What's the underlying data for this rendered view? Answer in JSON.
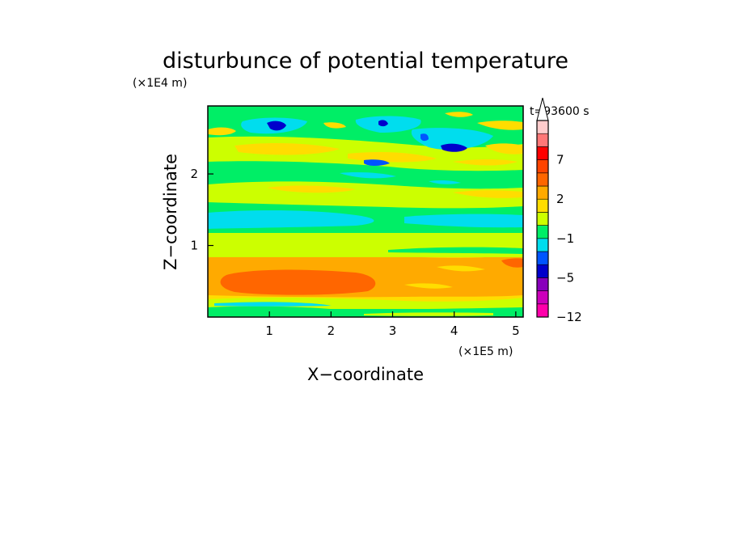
{
  "chart_data": {
    "type": "heatmap",
    "title": "disturbunce of potential temperature",
    "time_label": "t=93600 s",
    "xlabel": "X−coordinate",
    "ylabel": "Z−coordinate",
    "x_unit": "(×1E5 m)",
    "y_unit": "(×1E4 m)",
    "xlim": [
      0,
      5.12
    ],
    "ylim": [
      0,
      2.95
    ],
    "x_ticks": [
      {
        "value": 1,
        "label": "1"
      },
      {
        "value": 2,
        "label": "2"
      },
      {
        "value": 3,
        "label": "3"
      },
      {
        "value": 4,
        "label": "4"
      },
      {
        "value": 5,
        "label": "5"
      }
    ],
    "y_ticks": [
      {
        "value": 1,
        "label": "1"
      },
      {
        "value": 2,
        "label": "2"
      }
    ],
    "colorbar": {
      "levels": [
        {
          "color": "#ff00aa"
        },
        {
          "color": "#cc00bb"
        },
        {
          "color": "#8800bb"
        },
        {
          "color": "#0000cc"
        },
        {
          "color": "#0055ff"
        },
        {
          "color": "#00ddee"
        },
        {
          "color": "#00ee66"
        },
        {
          "color": "#ccff00"
        },
        {
          "color": "#ffdd00"
        },
        {
          "color": "#ffaa00"
        },
        {
          "color": "#ff6600"
        },
        {
          "color": "#ff4400"
        },
        {
          "color": "#ff0000"
        },
        {
          "color": "#ff7777"
        },
        {
          "color": "#ffcccc"
        }
      ],
      "extend_color": "#ffffff",
      "tick_labels": [
        {
          "label": "7",
          "after_level": 12
        },
        {
          "label": "2",
          "after_level": 9
        },
        {
          "label": "−1",
          "after_level": 6
        },
        {
          "label": "−5",
          "after_level": 3
        },
        {
          "label": "−12",
          "after_level": 0
        }
      ]
    }
  }
}
